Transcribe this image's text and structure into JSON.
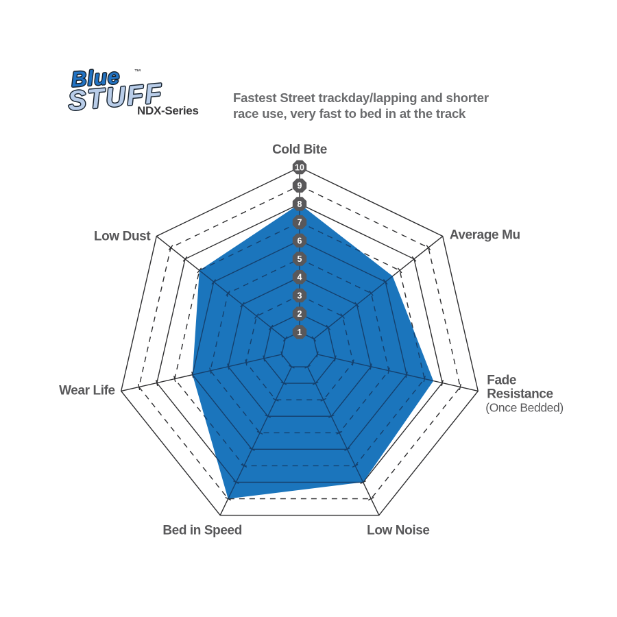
{
  "header": {
    "logo_word1": "Blue",
    "logo_word2": "STUFF",
    "trademark": "TM",
    "series": "NDX-Series",
    "tagline_line1": "Fastest Street trackday/lapping and shorter",
    "tagline_line2": "race use, very fast to bed in at the track"
  },
  "chart_data": {
    "type": "radar",
    "title": "",
    "categories": [
      "Cold Bite",
      "Average Mu",
      "Fade Resistance",
      "Low Noise",
      "Bed in Speed",
      "Wear Life",
      "Low Dust"
    ],
    "values": [
      8,
      6.5,
      7.5,
      8,
      9,
      6,
      7
    ],
    "axis_labels": [
      {
        "lines": [
          "Cold Bite"
        ]
      },
      {
        "lines": [
          "Average Mu"
        ]
      },
      {
        "lines": [
          "Fade",
          "Resistance"
        ],
        "note": "(Once Bedded)"
      },
      {
        "lines": [
          "Low Noise"
        ]
      },
      {
        "lines": [
          "Bed in Speed"
        ]
      },
      {
        "lines": [
          "Wear Life"
        ]
      },
      {
        "lines": [
          "Low Dust"
        ]
      }
    ],
    "scale": {
      "min": 0,
      "max": 10,
      "ring_values": [
        1,
        2,
        3,
        4,
        5,
        6,
        7,
        8,
        9,
        10
      ],
      "dashed_rings": [
        3,
        5,
        7,
        9
      ],
      "tick_labels": [
        "1",
        "2",
        "3",
        "4",
        "5",
        "6",
        "7",
        "8",
        "9",
        "10"
      ]
    },
    "legend": "none",
    "colors": {
      "series_fill": "#1b75bc",
      "grid_outside": "#2d2d2f",
      "grid_inside_fill": "#15406d",
      "badge_fill": "#59585a",
      "badge_text": "#ffffff",
      "label_text": "#575759"
    }
  }
}
